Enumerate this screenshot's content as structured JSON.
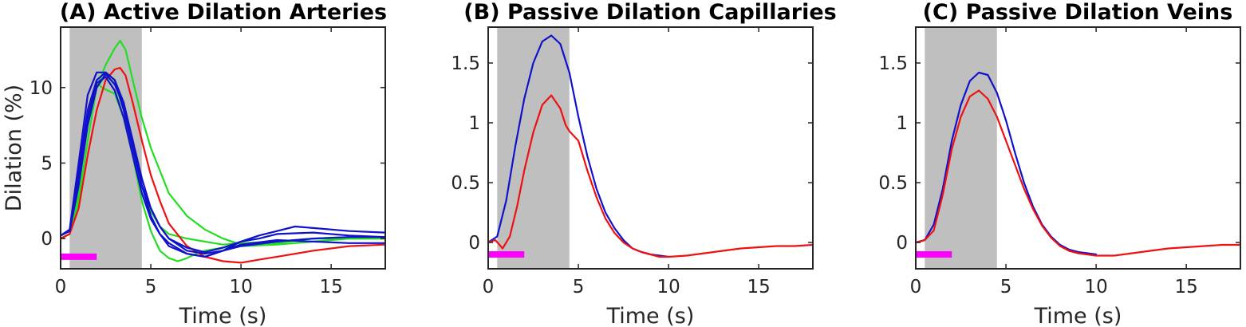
{
  "chart_data": [
    {
      "type": "line",
      "panel": "A",
      "title": "(A) Active Dilation Arteries",
      "xlabel": "Time (s)",
      "ylabel": "Dilation (%)",
      "xlim": [
        0,
        18
      ],
      "ylim": [
        -2,
        14
      ],
      "xticks": [
        0,
        5,
        10,
        15
      ],
      "yticks": [
        0,
        5,
        10
      ],
      "ytick_labels": [
        "0",
        "5",
        "10"
      ],
      "shaded_interval": [
        0.5,
        4.5
      ],
      "stimulus_bar": {
        "x": [
          0,
          2
        ],
        "y": -1.2,
        "color": "#ff00ff"
      },
      "series": [
        {
          "name": "green-1",
          "color": "#22dd22",
          "x": [
            0,
            0.5,
            1,
            1.5,
            2,
            2.5,
            3,
            3.3,
            3.6,
            4,
            4.5,
            5,
            5.5,
            6,
            7,
            8,
            9,
            10,
            12,
            14,
            16,
            18
          ],
          "y": [
            0,
            0.3,
            2.5,
            6.5,
            10,
            11.5,
            12.6,
            13.1,
            12.5,
            10.5,
            8,
            6,
            4.5,
            3,
            1.5,
            0.6,
            0,
            -0.4,
            -0.3,
            0,
            0,
            0
          ]
        },
        {
          "name": "green-2",
          "color": "#22dd22",
          "x": [
            0,
            0.5,
            1,
            1.5,
            2,
            2.3,
            2.6,
            3,
            3.5,
            4,
            4.5,
            5,
            5.5,
            6,
            6.5,
            7,
            7.5,
            8,
            9,
            10,
            12,
            14,
            16,
            18
          ],
          "y": [
            0,
            0.3,
            3,
            8,
            10.3,
            10,
            9.8,
            9.6,
            8,
            5.5,
            2.5,
            0.5,
            -0.8,
            -1.3,
            -1.5,
            -1.3,
            -1,
            -0.8,
            -0.6,
            -0.5,
            -0.4,
            -0.2,
            0,
            0
          ]
        },
        {
          "name": "green-3",
          "color": "#22dd22",
          "x": [
            0,
            0.5,
            1,
            1.5,
            2,
            2.5,
            3,
            3.5,
            4,
            4.5,
            5,
            5.5,
            6,
            7,
            8,
            9,
            10,
            12,
            14,
            16,
            18
          ],
          "y": [
            0,
            0.3,
            3.5,
            7.5,
            10,
            10.8,
            10.3,
            8.5,
            6,
            3.5,
            1.8,
            0.8,
            0.3,
            0,
            -0.2,
            -0.4,
            -0.3,
            -0.2,
            0,
            0.1,
            0.1
          ]
        },
        {
          "name": "red",
          "color": "#ee1111",
          "x": [
            0,
            0.5,
            1,
            1.5,
            2,
            2.5,
            3,
            3.3,
            3.6,
            4,
            4.5,
            5,
            5.5,
            6,
            7,
            8,
            9,
            10,
            11,
            12,
            14,
            16,
            18
          ],
          "y": [
            0,
            0.3,
            2,
            5.5,
            8.5,
            10.5,
            11.2,
            11.3,
            10.8,
            9,
            6.5,
            4.2,
            2.5,
            1,
            -0.5,
            -1.2,
            -1.5,
            -1.6,
            -1.4,
            -1.2,
            -0.8,
            -0.5,
            -0.4
          ]
        },
        {
          "name": "blue-1",
          "color": "#1111cc",
          "x": [
            0,
            0.5,
            1,
            1.5,
            2,
            2.5,
            3,
            3.5,
            4,
            4.5,
            5,
            5.5,
            6,
            7,
            8,
            9,
            10,
            11,
            12,
            13,
            14,
            16,
            18
          ],
          "y": [
            0.2,
            0.6,
            5,
            9.5,
            11,
            11,
            10.5,
            9,
            6.5,
            3.5,
            1.5,
            0.3,
            -0.5,
            -1,
            -1.2,
            -0.8,
            -0.2,
            0.2,
            0.5,
            0.8,
            0.7,
            0.5,
            0.4
          ]
        },
        {
          "name": "blue-2",
          "color": "#1111cc",
          "x": [
            0,
            0.5,
            1,
            1.5,
            2,
            2.5,
            3,
            3.5,
            4,
            4.5,
            5,
            5.5,
            6,
            7,
            8,
            9,
            10,
            12,
            14,
            16,
            18
          ],
          "y": [
            0.2,
            0.5,
            4.5,
            8.5,
            10.5,
            11,
            10.5,
            8.5,
            6,
            3.5,
            2,
            0.8,
            0,
            -0.8,
            -1,
            -0.8,
            -0.5,
            -0.2,
            0,
            0.1,
            0.1
          ]
        },
        {
          "name": "blue-3",
          "color": "#1111cc",
          "x": [
            0,
            0.5,
            1,
            1.5,
            2,
            2.5,
            3,
            3.5,
            4,
            4.5,
            5,
            5.5,
            6,
            7,
            8,
            9,
            10,
            12,
            14,
            16,
            18
          ],
          "y": [
            0.2,
            0.5,
            4,
            8,
            10.3,
            10.7,
            9.8,
            8,
            5.5,
            3,
            1.3,
            0.3,
            -0.3,
            -1,
            -1.2,
            -0.8,
            -0.4,
            -0.1,
            -0.2,
            -0.3,
            -0.3
          ]
        },
        {
          "name": "blue-4",
          "color": "#1111cc",
          "x": [
            0,
            0.5,
            1,
            1.5,
            2,
            2.5,
            3,
            3.5,
            4,
            4.5,
            5,
            5.5,
            6,
            7,
            8,
            9,
            10,
            11,
            12,
            14,
            16,
            18
          ],
          "y": [
            0.2,
            0.5,
            3.5,
            7.5,
            10,
            10.9,
            10.2,
            8.8,
            6.5,
            4,
            2,
            0.8,
            0,
            -0.6,
            -0.9,
            -0.6,
            -0.2,
            0,
            0.3,
            0.4,
            0.2,
            0.1
          ]
        }
      ]
    },
    {
      "type": "line",
      "panel": "B",
      "title": "(B) Passive Dilation Capillaries",
      "xlabel": "Time (s)",
      "ylabel": "",
      "xlim": [
        0,
        18
      ],
      "ylim": [
        -0.22,
        1.8
      ],
      "xticks": [
        0,
        5,
        10,
        15
      ],
      "yticks": [
        0,
        0.5,
        1,
        1.5
      ],
      "ytick_labels": [
        "0",
        "0.5",
        "1",
        "1.5"
      ],
      "shaded_interval": [
        0.5,
        4.5
      ],
      "stimulus_bar": {
        "x": [
          0,
          2
        ],
        "y": -0.1,
        "color": "#ff00ff"
      },
      "series": [
        {
          "name": "blue",
          "color": "#1111cc",
          "x": [
            0,
            0.5,
            1,
            1.5,
            2,
            2.5,
            3,
            3.5,
            4,
            4.5,
            5,
            5.5,
            6,
            6.5,
            7,
            7.5,
            8,
            8.5,
            9,
            9.5,
            10
          ],
          "y": [
            0,
            0.05,
            0.35,
            0.8,
            1.2,
            1.5,
            1.68,
            1.73,
            1.66,
            1.42,
            1.05,
            0.72,
            0.45,
            0.25,
            0.12,
            0.02,
            -0.05,
            -0.08,
            -0.1,
            -0.11,
            -0.12
          ]
        },
        {
          "name": "red",
          "color": "#ee1111",
          "x": [
            0,
            0.4,
            0.8,
            1.2,
            1.6,
            2,
            2.5,
            3,
            3.5,
            4,
            4.3,
            4.5,
            5,
            5.5,
            6,
            6.5,
            7,
            7.5,
            8,
            8.5,
            9,
            9.5,
            10,
            11,
            12,
            13,
            14,
            15,
            16,
            17,
            18
          ],
          "y": [
            0,
            0.02,
            -0.05,
            0.05,
            0.3,
            0.6,
            0.92,
            1.15,
            1.23,
            1.12,
            0.98,
            0.93,
            0.85,
            0.6,
            0.38,
            0.2,
            0.08,
            0,
            -0.05,
            -0.08,
            -0.1,
            -0.12,
            -0.12,
            -0.11,
            -0.09,
            -0.07,
            -0.05,
            -0.04,
            -0.03,
            -0.03,
            -0.02
          ]
        }
      ]
    },
    {
      "type": "line",
      "panel": "C",
      "title": "(C) Passive Dilation Veins",
      "xlabel": "Time (s)",
      "ylabel": "",
      "xlim": [
        0,
        18
      ],
      "ylim": [
        -0.22,
        1.8
      ],
      "xticks": [
        0,
        5,
        10,
        15
      ],
      "yticks": [
        0,
        0.5,
        1,
        1.5
      ],
      "ytick_labels": [
        "0",
        "0.5",
        "1",
        "1.5"
      ],
      "shaded_interval": [
        0.5,
        4.5
      ],
      "stimulus_bar": {
        "x": [
          0,
          2
        ],
        "y": -0.1,
        "color": "#ff00ff"
      },
      "series": [
        {
          "name": "blue",
          "color": "#1111cc",
          "x": [
            0,
            0.5,
            1,
            1.5,
            2,
            2.5,
            3,
            3.5,
            4,
            4.5,
            5,
            5.5,
            6,
            6.5,
            7,
            7.5,
            8,
            8.5,
            9,
            9.5,
            10
          ],
          "y": [
            0,
            0.02,
            0.15,
            0.45,
            0.85,
            1.15,
            1.35,
            1.42,
            1.4,
            1.25,
            1.02,
            0.75,
            0.5,
            0.3,
            0.15,
            0.05,
            -0.02,
            -0.06,
            -0.08,
            -0.09,
            -0.1
          ]
        },
        {
          "name": "red",
          "color": "#ee1111",
          "x": [
            0,
            0.5,
            1,
            1.5,
            2,
            2.5,
            3,
            3.5,
            4,
            4.5,
            5,
            5.5,
            6,
            6.5,
            7,
            7.5,
            8,
            8.5,
            9,
            9.5,
            10,
            11,
            12,
            13,
            14,
            15,
            16,
            17,
            18
          ],
          "y": [
            0,
            0.02,
            0.1,
            0.4,
            0.78,
            1.05,
            1.22,
            1.27,
            1.2,
            1.05,
            0.85,
            0.65,
            0.45,
            0.28,
            0.14,
            0.04,
            -0.03,
            -0.07,
            -0.09,
            -0.1,
            -0.11,
            -0.11,
            -0.09,
            -0.07,
            -0.05,
            -0.04,
            -0.03,
            -0.02,
            -0.02
          ]
        }
      ]
    }
  ]
}
